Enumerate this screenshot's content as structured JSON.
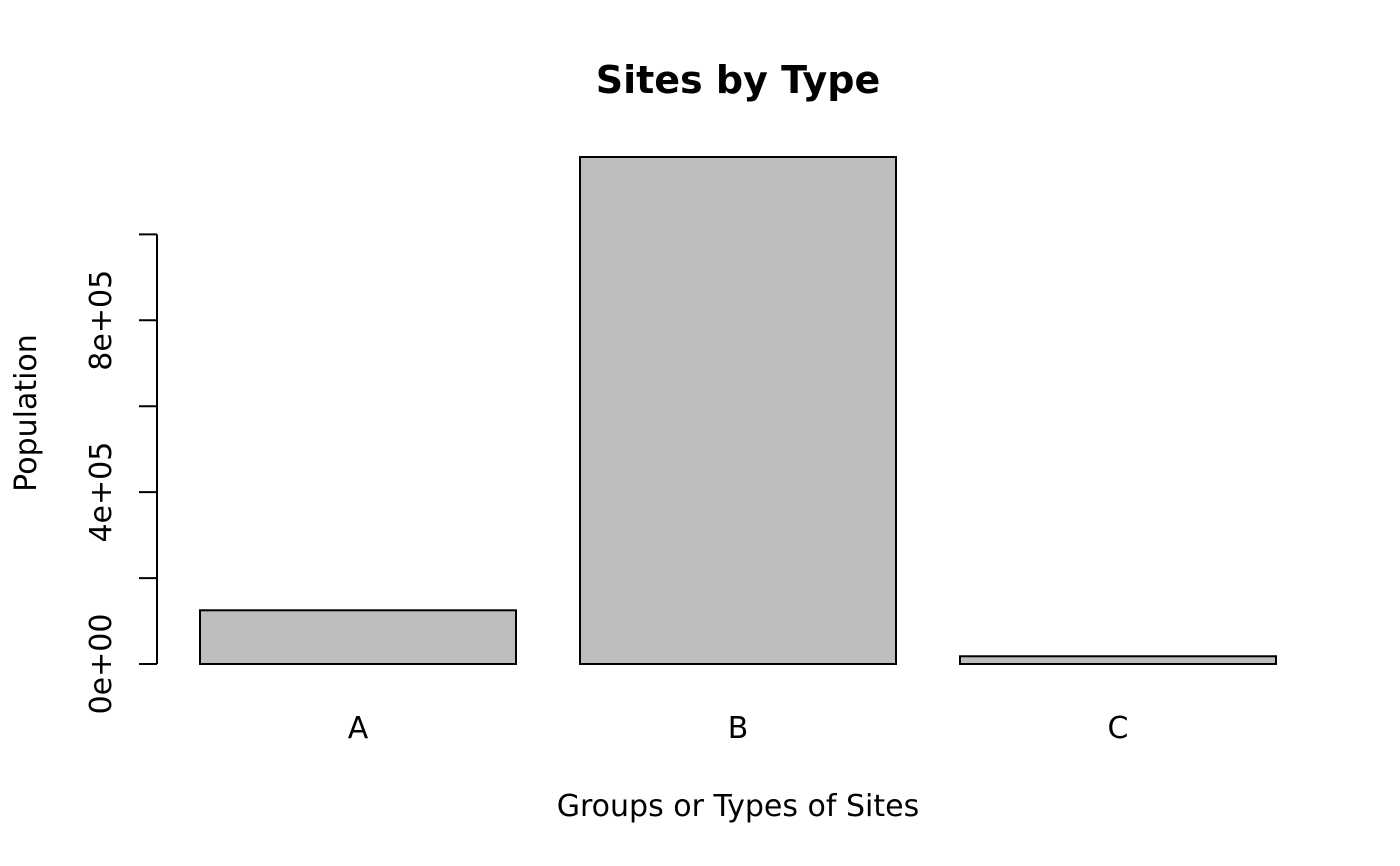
{
  "chart_data": {
    "type": "bar",
    "title": "Sites by Type",
    "xlabel": "Groups or Types of Sites",
    "ylabel": "Population",
    "categories": [
      "A",
      "B",
      "C"
    ],
    "values": [
      125000,
      1180000,
      18000
    ],
    "ylim": [
      0,
      1180000
    ],
    "y_ticks": [
      0,
      200000,
      400000,
      600000,
      800000,
      1000000
    ],
    "y_tick_labels": [
      "0e+00",
      "",
      "4e+05",
      "",
      "8e+05",
      ""
    ],
    "bar_fill": "#bebebe",
    "bar_stroke": "#000000",
    "grid": false,
    "legend": "none"
  }
}
